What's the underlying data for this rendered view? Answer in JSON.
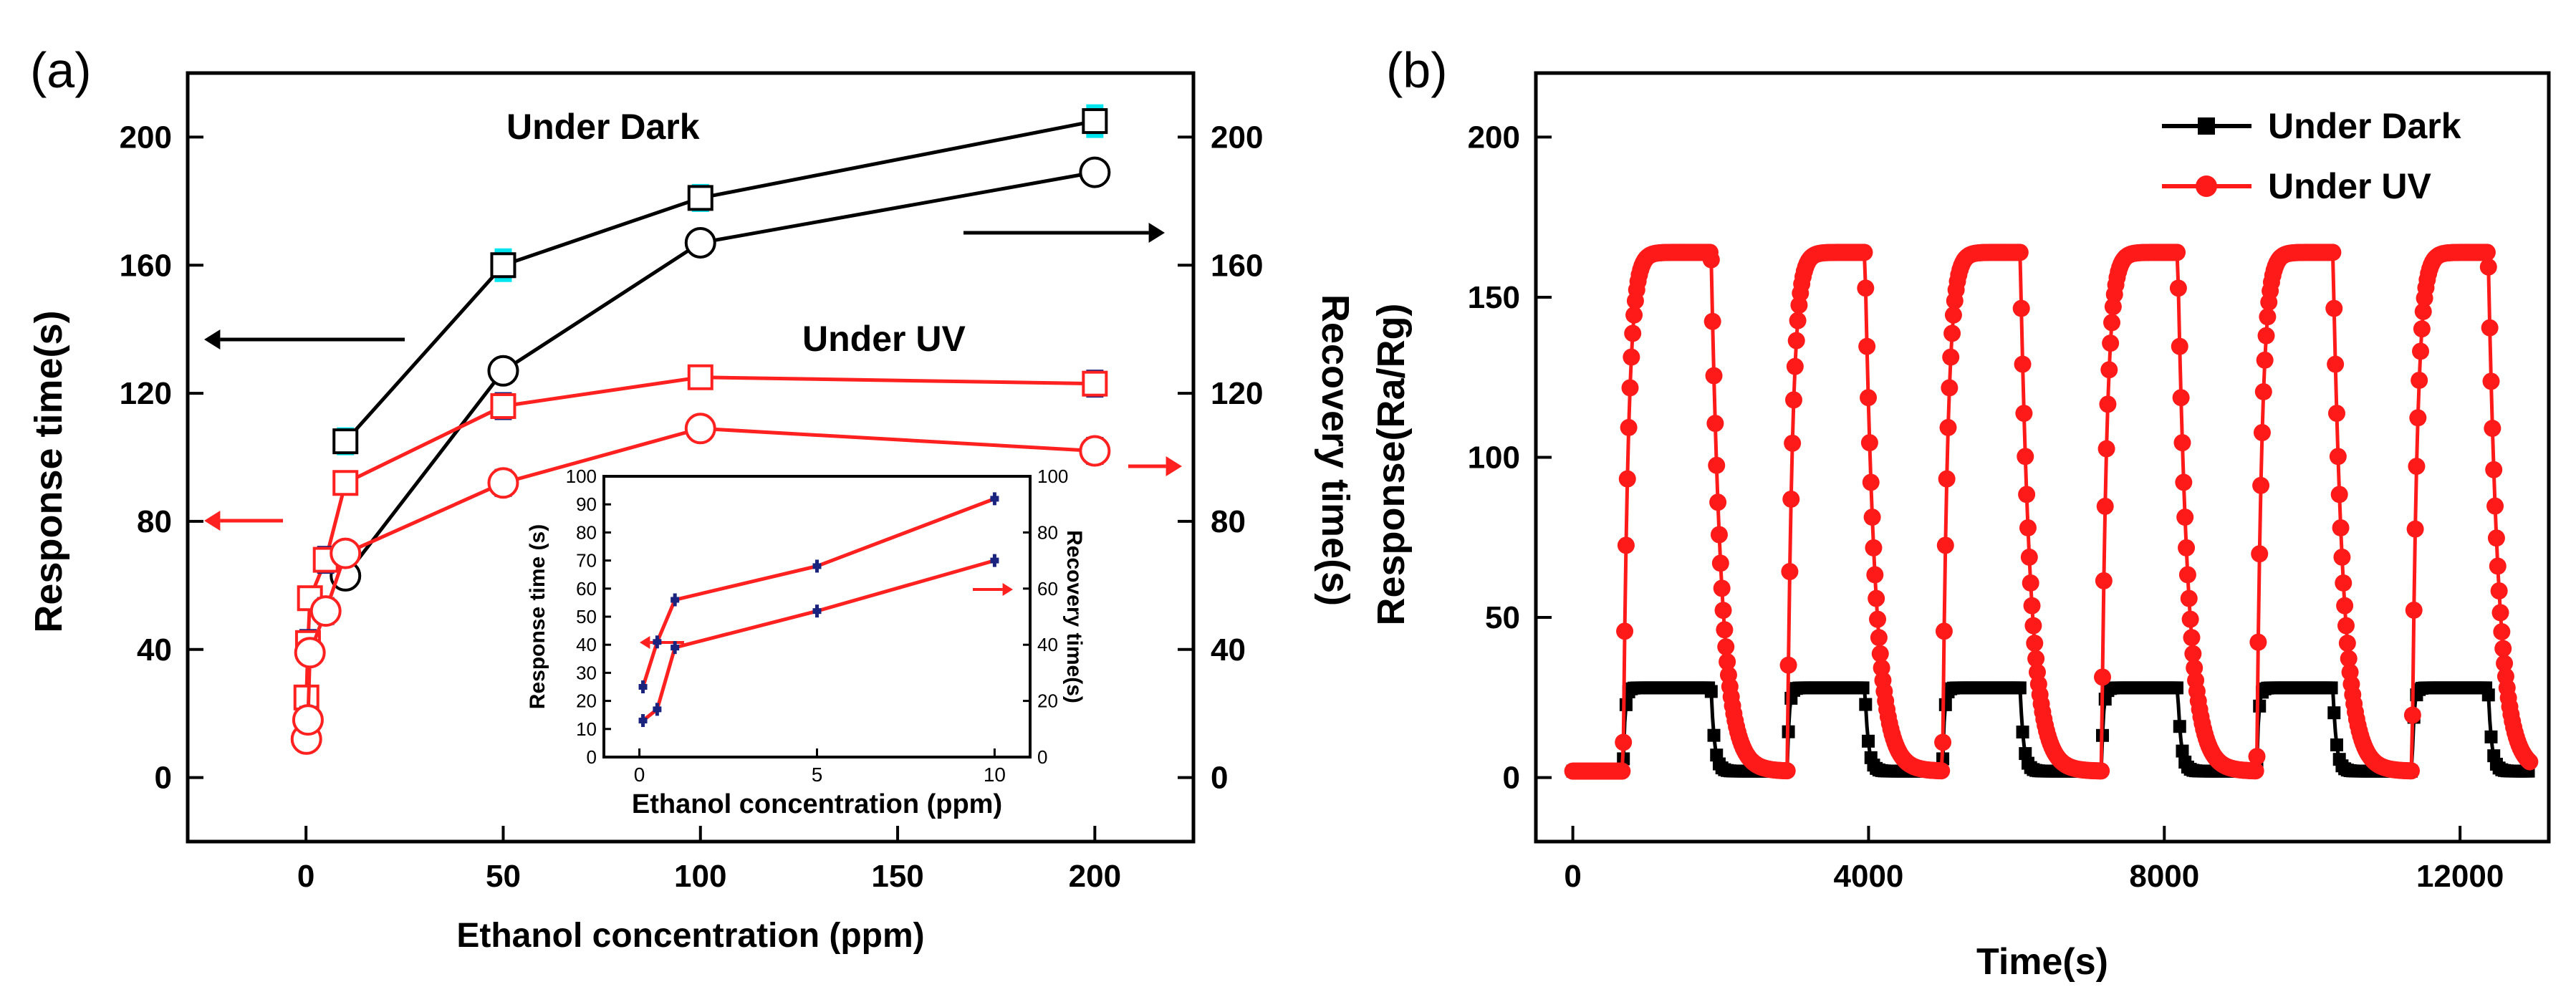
{
  "chart_data": [
    {
      "panel_label": "(a)",
      "type": "line",
      "xlabel": "Ethanol concentration (ppm)",
      "ylabel": "Response time(s)",
      "y2label": "Recovery time(s)",
      "xlim": [
        -30,
        225
      ],
      "ylim": [
        -20,
        220
      ],
      "x_ticks": [
        0,
        50,
        100,
        150,
        200
      ],
      "y_ticks": [
        0,
        40,
        80,
        120,
        160,
        200
      ],
      "y2_ticks": [
        0,
        40,
        80,
        120,
        160,
        200
      ],
      "annotations": [
        "Under Dark",
        "Under UV"
      ],
      "series": [
        {
          "name": "Under Dark response",
          "marker": "square",
          "color": "#000000",
          "errcolor": "#00e5ee",
          "x": [
            10,
            50,
            100,
            200
          ],
          "values": [
            105,
            160,
            181,
            205
          ]
        },
        {
          "name": "Under Dark recovery",
          "marker": "circle",
          "color": "#000000",
          "errcolor": "#00e5ee",
          "x": [
            10,
            50,
            100,
            200
          ],
          "values": [
            63,
            127,
            167,
            189
          ]
        },
        {
          "name": "Under UV response",
          "marker": "square",
          "color": "#ff2020",
          "errcolor": "#1a237e",
          "x": [
            0.1,
            0.5,
            1,
            5,
            10,
            50,
            100,
            200
          ],
          "values": [
            25,
            42,
            56,
            68,
            92,
            116,
            125,
            123
          ]
        },
        {
          "name": "Under UV recovery",
          "marker": "circle",
          "color": "#ff2020",
          "errcolor": "#1a237e",
          "x": [
            0.1,
            0.5,
            1,
            5,
            10,
            50,
            100,
            200
          ],
          "values": [
            12,
            18,
            39,
            52,
            70,
            92,
            109,
            102
          ]
        }
      ],
      "inset": {
        "type": "line",
        "xlabel": "Ethanol concentration (ppm)",
        "ylabel": "Response time (s)",
        "y2label": "Recovery time(s)",
        "xlim": [
          -1,
          11
        ],
        "ylim": [
          0,
          100
        ],
        "x_ticks": [
          0,
          5,
          10
        ],
        "y_ticks": [
          0,
          10,
          20,
          30,
          40,
          50,
          60,
          70,
          80,
          90,
          100
        ],
        "y2_ticks": [
          0,
          20,
          40,
          60,
          80,
          100
        ],
        "series": [
          {
            "name": "Response",
            "x": [
              0.1,
              0.5,
              1,
              5,
              10
            ],
            "values": [
              25,
              41,
              56,
              68,
              92
            ]
          },
          {
            "name": "Recovery",
            "x": [
              0.1,
              0.5,
              1,
              5,
              10
            ],
            "values": [
              13,
              17,
              39,
              52,
              70
            ]
          }
        ]
      }
    },
    {
      "panel_label": "(b)",
      "type": "line",
      "xlabel": "Time(s)",
      "ylabel": "Response(Ra/Rg)",
      "xlim": [
        -500,
        13200
      ],
      "ylim": [
        -20,
        220
      ],
      "x_ticks": [
        0,
        4000,
        8000,
        12000
      ],
      "y_ticks": [
        0,
        50,
        100,
        150,
        200
      ],
      "legend": [
        "Under Dark",
        "Under UV"
      ],
      "legend_position": "top-right",
      "cycles_on": [
        680,
        2900,
        5000,
        7150,
        9250,
        11350
      ],
      "cycles_off": [
        1870,
        3950,
        6050,
        8180,
        10280,
        12380
      ],
      "series": [
        {
          "name": "Under Dark",
          "color": "#000000",
          "marker": "square",
          "baseline": 2,
          "plateau": 28
        },
        {
          "name": "Under UV",
          "color": "#ff1a1a",
          "marker": "circle",
          "baseline": 2,
          "plateau": 164
        }
      ]
    }
  ]
}
